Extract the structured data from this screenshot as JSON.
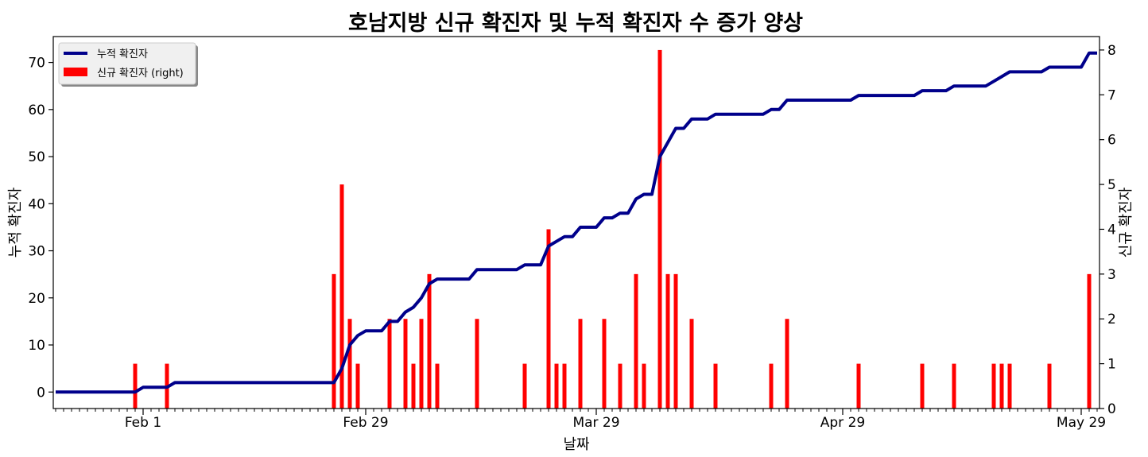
{
  "chart_data": {
    "type": "bar+line",
    "title": "호남지방 신규 확진자 및 누적 확진자 수 증가 양상",
    "xlabel": "날짜",
    "ylabel_left": "누적 확진자",
    "ylabel_right": "신규 확진자",
    "x_tick_labels": [
      "Feb 1",
      "Feb 29",
      "Mar 29",
      "Apr 29",
      "May 29"
    ],
    "x_tick_dates": [
      "2020-02-01",
      "2020-02-29",
      "2020-03-29",
      "2020-04-29",
      "2020-05-29"
    ],
    "x_range": [
      "2020-01-21",
      "2020-05-31"
    ],
    "ylim_left": [
      -3.5,
      75.5
    ],
    "ylim_right": [
      0,
      8.3
    ],
    "yticks_left": [
      0,
      10,
      20,
      30,
      40,
      50,
      60,
      70
    ],
    "yticks_right": [
      0,
      1,
      2,
      3,
      4,
      5,
      6,
      7,
      8
    ],
    "legend": {
      "position": "top-left",
      "line_label": "누적 확진자",
      "bar_label": "신규 확진자 (right)"
    },
    "colors": {
      "line": "#00008b",
      "bars": "#ff0000"
    },
    "series": [
      {
        "name": "누적 확진자",
        "type": "line",
        "axis": "left",
        "points": [
          [
            "2020-01-21",
            0
          ],
          [
            "2020-01-31",
            0
          ],
          [
            "2020-02-01",
            1
          ],
          [
            "2020-02-04",
            1
          ],
          [
            "2020-02-05",
            2
          ],
          [
            "2020-02-25",
            2
          ],
          [
            "2020-02-26",
            5
          ],
          [
            "2020-02-27",
            10
          ],
          [
            "2020-02-28",
            12
          ],
          [
            "2020-02-29",
            13
          ],
          [
            "2020-03-02",
            13
          ],
          [
            "2020-03-03",
            15
          ],
          [
            "2020-03-04",
            15
          ],
          [
            "2020-03-05",
            17
          ],
          [
            "2020-03-06",
            18
          ],
          [
            "2020-03-07",
            20
          ],
          [
            "2020-03-08",
            23
          ],
          [
            "2020-03-09",
            24
          ],
          [
            "2020-03-13",
            24
          ],
          [
            "2020-03-14",
            26
          ],
          [
            "2020-03-19",
            26
          ],
          [
            "2020-03-20",
            27
          ],
          [
            "2020-03-22",
            27
          ],
          [
            "2020-03-23",
            31
          ],
          [
            "2020-03-24",
            32
          ],
          [
            "2020-03-25",
            33
          ],
          [
            "2020-03-26",
            33
          ],
          [
            "2020-03-27",
            35
          ],
          [
            "2020-03-29",
            35
          ],
          [
            "2020-03-30",
            37
          ],
          [
            "2020-03-31",
            37
          ],
          [
            "2020-04-01",
            38
          ],
          [
            "2020-04-02",
            38
          ],
          [
            "2020-04-03",
            41
          ],
          [
            "2020-04-04",
            42
          ],
          [
            "2020-04-05",
            42
          ],
          [
            "2020-04-06",
            50
          ],
          [
            "2020-04-07",
            53
          ],
          [
            "2020-04-08",
            56
          ],
          [
            "2020-04-09",
            56
          ],
          [
            "2020-04-10",
            58
          ],
          [
            "2020-04-12",
            58
          ],
          [
            "2020-04-13",
            59
          ],
          [
            "2020-04-19",
            59
          ],
          [
            "2020-04-20",
            60
          ],
          [
            "2020-04-21",
            60
          ],
          [
            "2020-04-22",
            62
          ],
          [
            "2020-04-30",
            62
          ],
          [
            "2020-05-01",
            63
          ],
          [
            "2020-05-08",
            63
          ],
          [
            "2020-05-09",
            64
          ],
          [
            "2020-05-12",
            64
          ],
          [
            "2020-05-13",
            65
          ],
          [
            "2020-05-17",
            65
          ],
          [
            "2020-05-18",
            66
          ],
          [
            "2020-05-19",
            67
          ],
          [
            "2020-05-20",
            68
          ],
          [
            "2020-05-24",
            68
          ],
          [
            "2020-05-25",
            69
          ],
          [
            "2020-05-29",
            69
          ],
          [
            "2020-05-30",
            72
          ],
          [
            "2020-05-31",
            72
          ]
        ]
      },
      {
        "name": "신규 확진자",
        "type": "bar",
        "axis": "right",
        "points": [
          [
            "2020-01-31",
            1
          ],
          [
            "2020-02-04",
            1
          ],
          [
            "2020-02-25",
            3
          ],
          [
            "2020-02-26",
            5
          ],
          [
            "2020-02-27",
            2
          ],
          [
            "2020-02-28",
            1
          ],
          [
            "2020-03-03",
            2
          ],
          [
            "2020-03-05",
            2
          ],
          [
            "2020-03-06",
            1
          ],
          [
            "2020-03-07",
            2
          ],
          [
            "2020-03-08",
            3
          ],
          [
            "2020-03-09",
            1
          ],
          [
            "2020-03-14",
            2
          ],
          [
            "2020-03-20",
            1
          ],
          [
            "2020-03-23",
            4
          ],
          [
            "2020-03-24",
            1
          ],
          [
            "2020-03-25",
            1
          ],
          [
            "2020-03-27",
            2
          ],
          [
            "2020-03-30",
            2
          ],
          [
            "2020-04-01",
            1
          ],
          [
            "2020-04-03",
            3
          ],
          [
            "2020-04-04",
            1
          ],
          [
            "2020-04-06",
            8
          ],
          [
            "2020-04-07",
            3
          ],
          [
            "2020-04-08",
            3
          ],
          [
            "2020-04-10",
            2
          ],
          [
            "2020-04-13",
            1
          ],
          [
            "2020-04-20",
            1
          ],
          [
            "2020-04-22",
            2
          ],
          [
            "2020-05-01",
            1
          ],
          [
            "2020-05-09",
            1
          ],
          [
            "2020-05-13",
            1
          ],
          [
            "2020-05-18",
            1
          ],
          [
            "2020-05-19",
            1
          ],
          [
            "2020-05-20",
            1
          ],
          [
            "2020-05-25",
            1
          ],
          [
            "2020-05-30",
            3
          ]
        ]
      }
    ]
  }
}
